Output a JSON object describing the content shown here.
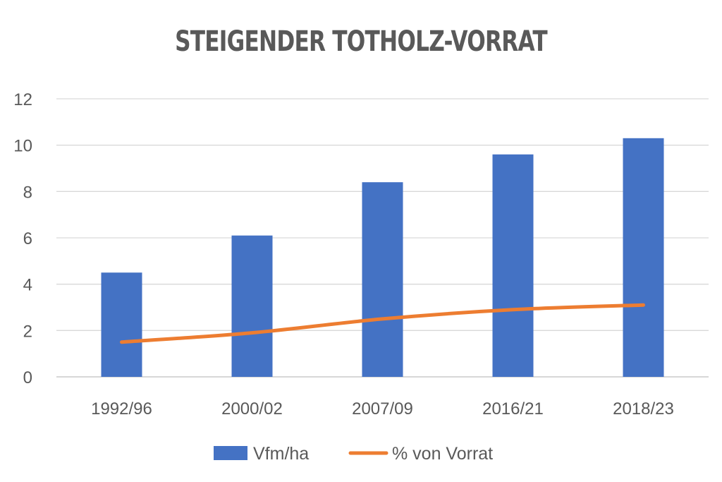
{
  "chart_data": {
    "type": "bar",
    "title": "STEIGENDER TOTHOLZ-VORRAT",
    "categories": [
      "1992/96",
      "2000/02",
      "2007/09",
      "2016/21",
      "2018/23"
    ],
    "series": [
      {
        "name": "Vfm/ha",
        "type": "bar",
        "color": "#4472C4",
        "values": [
          4.5,
          6.1,
          8.4,
          9.6,
          10.3
        ]
      },
      {
        "name": "% von Vorrat",
        "type": "line",
        "color": "#ED7D31",
        "values": [
          1.5,
          1.9,
          2.5,
          2.9,
          3.1
        ]
      }
    ],
    "y_ticks": [
      "0",
      "2",
      "4",
      "6",
      "8",
      "10",
      "12"
    ],
    "ylim": [
      0,
      12
    ],
    "grid": true,
    "legend_position": "bottom"
  }
}
